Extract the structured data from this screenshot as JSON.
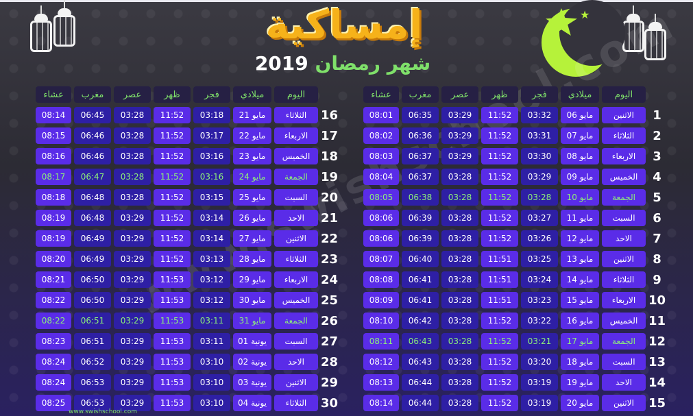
{
  "header": {
    "title": "إمساكية",
    "subtitle_year": "2019",
    "subtitle_text": "شهر رمضان"
  },
  "columns": [
    "اليوم",
    "ميلادي",
    "فجر",
    "ظهر",
    "عصر",
    "مغرب",
    "عشاء"
  ],
  "right_table": [
    {
      "n": "1",
      "day": "الاثنين",
      "date": "06 مايو",
      "fajr": "03:32",
      "dhuhr": "11:52",
      "asr": "03:29",
      "maghrib": "06:35",
      "isha": "08:01"
    },
    {
      "n": "2",
      "day": "الثلاثاء",
      "date": "07 مايو",
      "fajr": "03:31",
      "dhuhr": "11:52",
      "asr": "03:29",
      "maghrib": "06:36",
      "isha": "08:02"
    },
    {
      "n": "3",
      "day": "الاربعاء",
      "date": "08 مايو",
      "fajr": "03:30",
      "dhuhr": "11:52",
      "asr": "03:29",
      "maghrib": "06:37",
      "isha": "08:03"
    },
    {
      "n": "4",
      "day": "الخميس",
      "date": "09 مايو",
      "fajr": "03:29",
      "dhuhr": "11:52",
      "asr": "03:28",
      "maghrib": "06:37",
      "isha": "08:04"
    },
    {
      "n": "5",
      "day": "الجمعة",
      "date": "10 مايو",
      "fajr": "03:28",
      "dhuhr": "11:52",
      "asr": "03:28",
      "maghrib": "06:38",
      "isha": "08:05",
      "friday": true
    },
    {
      "n": "6",
      "day": "السبت",
      "date": "11 مايو",
      "fajr": "03:27",
      "dhuhr": "11:52",
      "asr": "03:28",
      "maghrib": "06:39",
      "isha": "08:06"
    },
    {
      "n": "7",
      "day": "الاحد",
      "date": "12 مايو",
      "fajr": "03:26",
      "dhuhr": "11:52",
      "asr": "03:28",
      "maghrib": "06:39",
      "isha": "08:06"
    },
    {
      "n": "8",
      "day": "الاثنين",
      "date": "13 مايو",
      "fajr": "03:25",
      "dhuhr": "11:51",
      "asr": "03:28",
      "maghrib": "06:40",
      "isha": "08:07"
    },
    {
      "n": "9",
      "day": "الثلاثاء",
      "date": "14 مايو",
      "fajr": "03:24",
      "dhuhr": "11:51",
      "asr": "03:28",
      "maghrib": "06:41",
      "isha": "08:08"
    },
    {
      "n": "10",
      "day": "الاربعاء",
      "date": "15 مايو",
      "fajr": "03:23",
      "dhuhr": "11:51",
      "asr": "03:28",
      "maghrib": "06:41",
      "isha": "08:09"
    },
    {
      "n": "11",
      "day": "الخميس",
      "date": "16 مايو",
      "fajr": "03:22",
      "dhuhr": "11:52",
      "asr": "03:28",
      "maghrib": "06:42",
      "isha": "08:10"
    },
    {
      "n": "12",
      "day": "الجمعة",
      "date": "17 مايو",
      "fajr": "03:21",
      "dhuhr": "11:52",
      "asr": "03:28",
      "maghrib": "06:43",
      "isha": "08:11",
      "friday": true
    },
    {
      "n": "13",
      "day": "السبت",
      "date": "18 مايو",
      "fajr": "03:20",
      "dhuhr": "11:52",
      "asr": "03:28",
      "maghrib": "06:43",
      "isha": "08:12"
    },
    {
      "n": "14",
      "day": "الاحد",
      "date": "19 مايو",
      "fajr": "03:19",
      "dhuhr": "11:52",
      "asr": "03:28",
      "maghrib": "06:44",
      "isha": "08:13"
    },
    {
      "n": "15",
      "day": "الاثنين",
      "date": "20 مايو",
      "fajr": "03:19",
      "dhuhr": "11:52",
      "asr": "03:28",
      "maghrib": "06:44",
      "isha": "08:14"
    }
  ],
  "left_table": [
    {
      "n": "16",
      "day": "الثلاثاء",
      "date": "21 مايو",
      "fajr": "03:18",
      "dhuhr": "11:52",
      "asr": "03:28",
      "maghrib": "06:45",
      "isha": "08:14"
    },
    {
      "n": "17",
      "day": "الاربعاء",
      "date": "22 مايو",
      "fajr": "03:17",
      "dhuhr": "11:52",
      "asr": "03:28",
      "maghrib": "06:46",
      "isha": "08:15"
    },
    {
      "n": "18",
      "day": "الخميس",
      "date": "23 مايو",
      "fajr": "03:16",
      "dhuhr": "11:52",
      "asr": "03:28",
      "maghrib": "06:46",
      "isha": "08:16"
    },
    {
      "n": "19",
      "day": "الجمعة",
      "date": "24 مايو",
      "fajr": "03:16",
      "dhuhr": "11:52",
      "asr": "03:28",
      "maghrib": "06:47",
      "isha": "08:17",
      "friday": true
    },
    {
      "n": "20",
      "day": "السبت",
      "date": "25 مايو",
      "fajr": "03:15",
      "dhuhr": "11:52",
      "asr": "03:28",
      "maghrib": "06:48",
      "isha": "08:18"
    },
    {
      "n": "21",
      "day": "الاحد",
      "date": "26 مايو",
      "fajr": "03:14",
      "dhuhr": "11:52",
      "asr": "03:29",
      "maghrib": "06:48",
      "isha": "08:19"
    },
    {
      "n": "22",
      "day": "الاثنين",
      "date": "27 مايو",
      "fajr": "03:14",
      "dhuhr": "11:52",
      "asr": "03:29",
      "maghrib": "06:49",
      "isha": "08:19"
    },
    {
      "n": "23",
      "day": "الثلاثاء",
      "date": "28 مايو",
      "fajr": "03:13",
      "dhuhr": "11:52",
      "asr": "03:29",
      "maghrib": "06:49",
      "isha": "08:20"
    },
    {
      "n": "24",
      "day": "الاربعاء",
      "date": "29 مايو",
      "fajr": "03:12",
      "dhuhr": "11:53",
      "asr": "03:29",
      "maghrib": "06:50",
      "isha": "08:21"
    },
    {
      "n": "25",
      "day": "الخميس",
      "date": "30 مايو",
      "fajr": "03:12",
      "dhuhr": "11:53",
      "asr": "03:29",
      "maghrib": "06:50",
      "isha": "08:22"
    },
    {
      "n": "26",
      "day": "الجمعة",
      "date": "31 مايو",
      "fajr": "03:11",
      "dhuhr": "11:53",
      "asr": "03:29",
      "maghrib": "06:51",
      "isha": "08:22",
      "friday": true
    },
    {
      "n": "27",
      "day": "السبت",
      "date": "01 يونية",
      "fajr": "03:11",
      "dhuhr": "11:53",
      "asr": "03:29",
      "maghrib": "06:51",
      "isha": "08:23"
    },
    {
      "n": "28",
      "day": "الاحد",
      "date": "02 يونية",
      "fajr": "03:10",
      "dhuhr": "11:53",
      "asr": "03:29",
      "maghrib": "06:52",
      "isha": "08:24"
    },
    {
      "n": "29",
      "day": "الاثنين",
      "date": "03 يونية",
      "fajr": "03:10",
      "dhuhr": "11:53",
      "asr": "03:29",
      "maghrib": "06:53",
      "isha": "08:24"
    },
    {
      "n": "30",
      "day": "الثلاثاء",
      "date": "04 يونية",
      "fajr": "03:10",
      "dhuhr": "11:53",
      "asr": "03:29",
      "maghrib": "06:53",
      "isha": "08:25"
    }
  ],
  "watermark": "www.swishschool.com",
  "footer": "www.swishschool.com",
  "colors": {
    "accent_green": "#7fe06a",
    "title_gold": "#f6b21a",
    "cell_purple": "#5a2ce8",
    "cell_blue": "#2e1fa5",
    "moon": "#b6f23a"
  }
}
